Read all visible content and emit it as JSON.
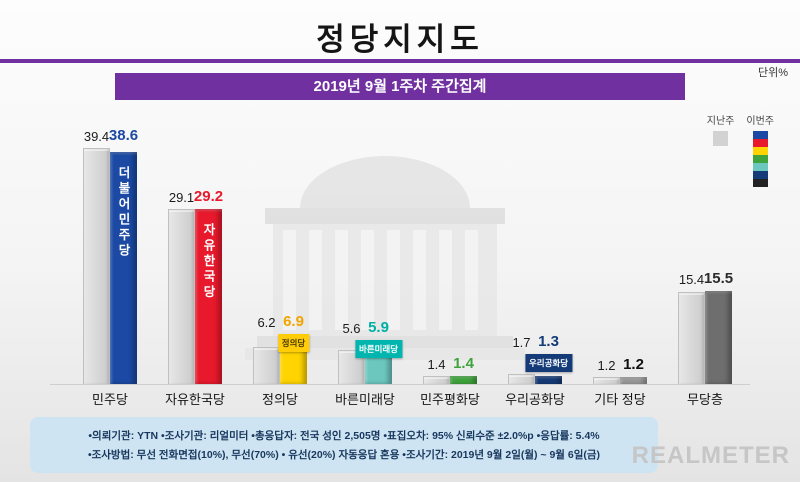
{
  "header": {
    "title": "정당지지도",
    "unit": "단위%",
    "subtitle": "2019년 9월 1주차 주간집계"
  },
  "colors": {
    "accent_purple": "#7030a0",
    "footer_bg": "#cfe4f2"
  },
  "legend": {
    "last_week_label": "지난주",
    "this_week_label": "이번주",
    "last_week_color": "#d2d2d2",
    "this_week_colors": [
      "#1b49a4",
      "#e8192c",
      "#ffd400",
      "#3fa43c",
      "#6cc7bf",
      "#143a77",
      "#222222"
    ]
  },
  "chart_data": {
    "type": "bar",
    "title": "정당지지도",
    "subtitle": "2019년 9월 1주차 주간집계",
    "unit": "%",
    "categories": [
      "민주당",
      "자유한국당",
      "정의당",
      "바른미래당",
      "민주평화당",
      "우리공화당",
      "기타 정당",
      "무당층"
    ],
    "series": [
      {
        "name": "지난주",
        "values": [
          39.4,
          29.1,
          6.2,
          5.6,
          1.4,
          1.7,
          1.2,
          15.4
        ]
      },
      {
        "name": "이번주",
        "values": [
          38.6,
          29.2,
          6.9,
          5.9,
          1.4,
          1.3,
          1.2,
          15.5
        ]
      }
    ],
    "ylim": [
      0,
      42
    ],
    "grid": false,
    "legend_position": "top-right",
    "bar_colors": [
      "#1b49a4",
      "#e8192c",
      "#ffd400",
      "#6cc7bf",
      "#3fa43c",
      "#143a77",
      "#9b9b9b",
      "#6e6e6e"
    ],
    "value_colors": [
      "#1b49a4",
      "#e8192c",
      "#f0a500",
      "#00b0a6",
      "#3fa43c",
      "#143a77",
      "#111111",
      "#2b2b2b"
    ],
    "overlays": [
      {
        "category_index": 0,
        "style": "in-bar",
        "text": "더불어민주당",
        "bg": "#1b49a4",
        "color": "#ffffff"
      },
      {
        "category_index": 1,
        "style": "in-bar",
        "text": "자유한국당",
        "bg": "#e8192c",
        "color": "#ffffff"
      },
      {
        "category_index": 2,
        "style": "box",
        "text": "정의당",
        "bg": "#ffcc08",
        "color": "#4a3b00"
      },
      {
        "category_index": 3,
        "style": "box",
        "text": "바른미래당",
        "bg": "#00b5ad",
        "color": "#ffffff"
      },
      {
        "category_index": 5,
        "style": "box",
        "text": "우리공화당",
        "bg": "#143a77",
        "color": "#ffffff"
      }
    ]
  },
  "footer": {
    "line1": "•의뢰기관: YTN  •조사기관: 리얼미터  •총응답자: 전국 성인 2,505명  •표집오차: 95% 신뢰수준 ±2.0%p  •응답률: 5.4%",
    "line2": "•조사방법: 무선 전화면접(10%), 무선(70%) • 유선(20%) 자동응답 혼용  •조사기간: 2019년 9월 2일(월) ~ 9월 6일(금)",
    "logo": "REALMETER"
  }
}
